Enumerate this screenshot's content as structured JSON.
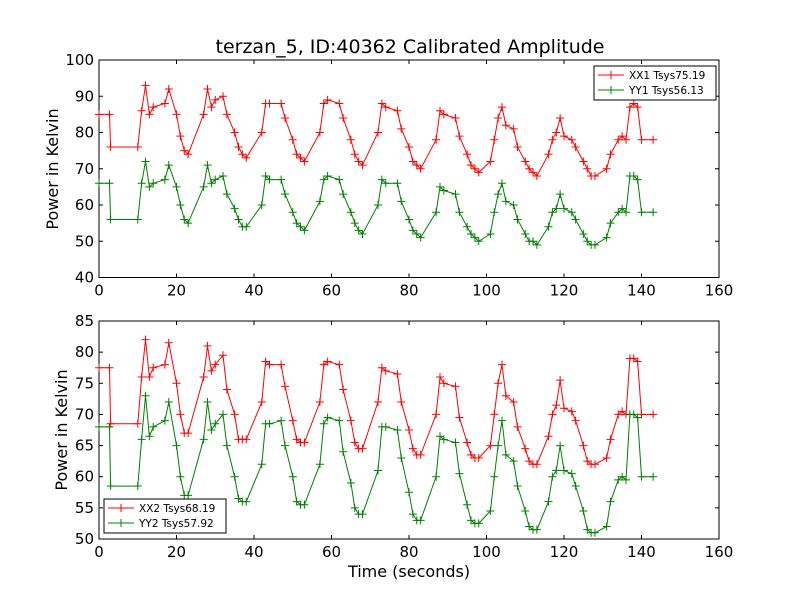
{
  "title": "terzan_5, ID:40362 Calibrated Amplitude",
  "shared_xlabel": "Time (seconds)",
  "colors": {
    "red": "#ff0000",
    "green": "#008000"
  },
  "chart_data": [
    {
      "type": "line",
      "title": "terzan_5, ID:40362 Calibrated Amplitude",
      "xlabel": "",
      "ylabel": "Power in Kelvin",
      "xlim": [
        0,
        160
      ],
      "ylim": [
        40,
        100
      ],
      "xticks": [
        0,
        20,
        40,
        60,
        80,
        100,
        120,
        140,
        160
      ],
      "yticks": [
        40,
        50,
        60,
        70,
        80,
        90,
        100
      ],
      "grid": false,
      "legend_position": "top-right",
      "marker": "plus",
      "series": [
        {
          "name": "XX1 Tsys75.19",
          "color": "#ff0000",
          "x": [
            0,
            2.7,
            3,
            10,
            11,
            12,
            13,
            14,
            17,
            18,
            20,
            21,
            22,
            23,
            27,
            28,
            29,
            30,
            32,
            33,
            35,
            36,
            37,
            38,
            42,
            43,
            44,
            47,
            48,
            50,
            51,
            52,
            53,
            57,
            58,
            59,
            62,
            63,
            65,
            66,
            67,
            68,
            72,
            73,
            74,
            77,
            78,
            80,
            81,
            82,
            83,
            87,
            88,
            89,
            92,
            93,
            95,
            96,
            97,
            98,
            101,
            102,
            103,
            104,
            105,
            107,
            108,
            110,
            111,
            112,
            113,
            116,
            117,
            118,
            119,
            120,
            122,
            123,
            125,
            126,
            127,
            128,
            131,
            132,
            134,
            135,
            136,
            137,
            138,
            139,
            140,
            143
          ],
          "y": [
            85,
            85,
            76,
            76,
            86,
            93,
            85,
            87,
            88,
            92,
            85,
            79,
            75,
            74,
            85,
            92,
            87,
            89,
            90,
            85,
            80,
            76,
            74,
            73,
            80,
            88,
            88,
            88,
            84,
            78,
            74,
            73,
            72,
            80,
            88,
            89,
            88,
            84,
            78,
            74,
            72,
            71,
            80,
            88,
            87,
            86,
            81,
            76,
            72,
            71,
            70,
            78,
            86,
            85,
            84,
            79,
            74,
            71,
            70,
            69,
            72,
            78,
            84,
            87,
            82,
            81,
            76,
            72,
            70,
            69,
            68,
            74,
            78,
            80,
            84,
            79,
            78,
            76,
            72,
            70,
            68,
            68,
            70,
            74,
            78,
            79,
            78,
            87,
            88,
            87,
            78,
            78
          ]
        },
        {
          "name": "YY1 Tsys56.13",
          "color": "#008000",
          "x": [
            0,
            2.7,
            3,
            10,
            11,
            12,
            13,
            14,
            17,
            18,
            20,
            21,
            22,
            23,
            27,
            28,
            29,
            30,
            32,
            33,
            35,
            36,
            37,
            38,
            42,
            43,
            44,
            47,
            48,
            50,
            51,
            52,
            53,
            57,
            58,
            59,
            62,
            63,
            65,
            66,
            67,
            68,
            72,
            73,
            74,
            77,
            78,
            80,
            81,
            82,
            83,
            87,
            88,
            89,
            92,
            93,
            95,
            96,
            97,
            98,
            101,
            102,
            103,
            104,
            105,
            107,
            108,
            110,
            111,
            112,
            113,
            116,
            117,
            118,
            119,
            120,
            122,
            123,
            125,
            126,
            127,
            128,
            131,
            132,
            134,
            135,
            136,
            137,
            138,
            139,
            140,
            143
          ],
          "y": [
            66,
            66,
            56,
            56,
            66,
            72,
            65,
            66,
            67,
            71,
            65,
            60,
            56,
            55,
            65,
            71,
            66,
            67,
            68,
            63,
            59,
            56,
            54,
            54,
            60,
            68,
            67,
            67,
            63,
            58,
            55,
            54,
            53,
            61,
            67,
            68,
            67,
            63,
            58,
            55,
            53,
            52,
            60,
            67,
            66,
            66,
            61,
            56,
            53,
            52,
            51,
            58,
            65,
            64,
            63,
            58,
            54,
            52,
            51,
            50,
            52,
            58,
            63,
            66,
            61,
            60,
            56,
            52,
            50,
            50,
            49,
            54,
            58,
            59,
            63,
            59,
            58,
            56,
            52,
            50,
            49,
            49,
            51,
            55,
            58,
            59,
            58,
            68,
            68,
            67,
            58,
            58
          ]
        }
      ]
    },
    {
      "type": "line",
      "title": "",
      "xlabel": "Time (seconds)",
      "ylabel": "Power in Kelvin",
      "xlim": [
        0,
        160
      ],
      "ylim": [
        50,
        85
      ],
      "xticks": [
        0,
        20,
        40,
        60,
        80,
        100,
        120,
        140,
        160
      ],
      "yticks": [
        50,
        55,
        60,
        65,
        70,
        75,
        80,
        85
      ],
      "grid": false,
      "legend_position": "bottom-left",
      "marker": "plus",
      "series": [
        {
          "name": "XX2 Tsys68.19",
          "color": "#ff0000",
          "x": [
            0,
            2.7,
            3,
            10,
            11,
            12,
            13,
            14,
            17,
            18,
            20,
            21,
            22,
            23,
            27,
            28,
            29,
            30,
            32,
            33,
            35,
            36,
            37,
            38,
            42,
            43,
            44,
            47,
            48,
            50,
            51,
            52,
            53,
            57,
            58,
            59,
            62,
            63,
            65,
            66,
            67,
            68,
            72,
            73,
            74,
            77,
            78,
            80,
            81,
            82,
            83,
            87,
            88,
            89,
            92,
            93,
            95,
            96,
            97,
            98,
            101,
            102,
            103,
            104,
            105,
            107,
            108,
            110,
            111,
            112,
            113,
            116,
            117,
            118,
            119,
            120,
            122,
            123,
            125,
            126,
            127,
            128,
            131,
            132,
            134,
            135,
            136,
            137,
            138,
            139,
            140,
            143
          ],
          "y": [
            77.5,
            77.5,
            68.5,
            68.5,
            76,
            82,
            76,
            77.5,
            78,
            81.5,
            75,
            70,
            67,
            67,
            76,
            81,
            77,
            78,
            79.5,
            74,
            70,
            66,
            66,
            66,
            72,
            78.5,
            78,
            78,
            74.5,
            69,
            66,
            65.5,
            65.5,
            72,
            78,
            78.5,
            78,
            74,
            69,
            65.5,
            64.5,
            64.5,
            72,
            77.5,
            77,
            76.5,
            72,
            67.5,
            64.5,
            63.5,
            63.5,
            70,
            76,
            75,
            74.5,
            69.5,
            65.5,
            63.5,
            63,
            63,
            65,
            70,
            75,
            78,
            73,
            72,
            68,
            64.5,
            62.5,
            62,
            62,
            66.5,
            70,
            71.5,
            75.5,
            71,
            70.5,
            69,
            65,
            62.5,
            62,
            62,
            63,
            66,
            70,
            70.5,
            70,
            79,
            79,
            78.5,
            70,
            70
          ]
        },
        {
          "name": "YY2 Tsys57.92",
          "color": "#008000",
          "x": [
            0,
            2.7,
            3,
            10,
            11,
            12,
            13,
            14,
            17,
            18,
            20,
            21,
            22,
            23,
            27,
            28,
            29,
            30,
            32,
            33,
            35,
            36,
            37,
            38,
            42,
            43,
            44,
            47,
            48,
            50,
            51,
            52,
            53,
            57,
            58,
            59,
            62,
            63,
            65,
            66,
            67,
            68,
            72,
            73,
            74,
            77,
            78,
            80,
            81,
            82,
            83,
            87,
            88,
            89,
            92,
            93,
            95,
            96,
            97,
            98,
            101,
            102,
            103,
            104,
            105,
            107,
            108,
            110,
            111,
            112,
            113,
            116,
            117,
            118,
            119,
            120,
            122,
            123,
            125,
            126,
            127,
            128,
            131,
            132,
            134,
            135,
            136,
            137,
            138,
            139,
            140,
            143
          ],
          "y": [
            68,
            68,
            58.5,
            58.5,
            66,
            73,
            66.5,
            68,
            69,
            72,
            65,
            60,
            57,
            57,
            66,
            72,
            67.5,
            68.5,
            70,
            65,
            60,
            56.5,
            56,
            56,
            62,
            68.5,
            68.5,
            69,
            65,
            60,
            56,
            55.5,
            55.5,
            62,
            68.5,
            69.5,
            69,
            64,
            59,
            55,
            54,
            54,
            61,
            68,
            68,
            67.5,
            63,
            57.5,
            54,
            53,
            53,
            60,
            66.5,
            66,
            65.5,
            60.5,
            55.5,
            53,
            52.5,
            52.5,
            54.5,
            60,
            65,
            69,
            63.5,
            62.5,
            58.5,
            54.5,
            52,
            51.5,
            51.5,
            56,
            60,
            61,
            65,
            61,
            60.5,
            58.5,
            54.5,
            51.5,
            51,
            51,
            52,
            56,
            59.5,
            60,
            59.5,
            70,
            70,
            69.5,
            60,
            60
          ]
        }
      ]
    }
  ]
}
